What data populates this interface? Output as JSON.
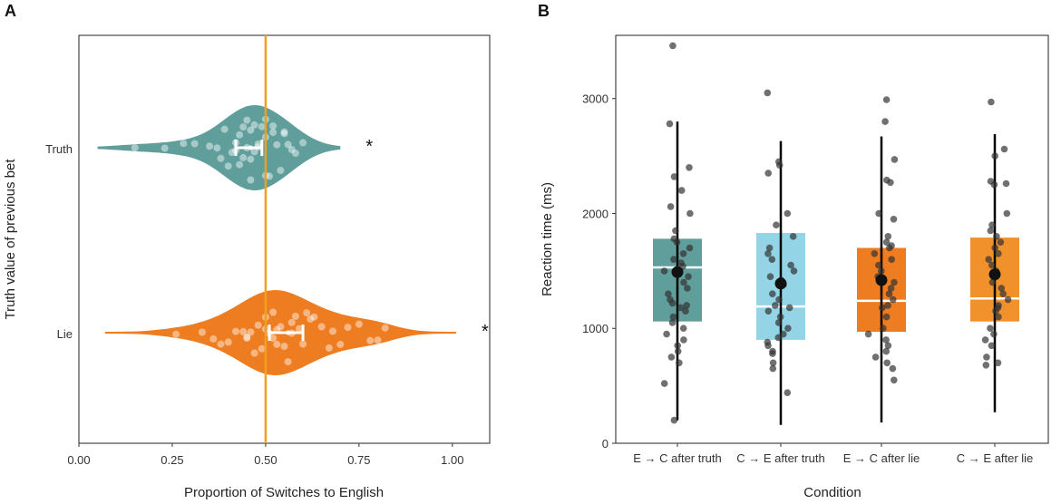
{
  "chart_data": [
    {
      "panel": "A",
      "type": "violin",
      "xlabel": "Proportion of Switches to English",
      "ylabel": "Truth value of previous bet",
      "xlim": [
        0,
        1.1
      ],
      "xticks": [
        "0.00",
        "0.25",
        "0.50",
        "0.75",
        "1.00"
      ],
      "xtick_values": [
        0,
        0.25,
        0.5,
        0.75,
        1.0
      ],
      "reference_line": 0.5,
      "reference_color": "#f0a020",
      "groups": [
        {
          "name": "Truth",
          "color": "#5f9e9b",
          "range": [
            0.05,
            0.7
          ],
          "mean": 0.46,
          "ci": [
            0.42,
            0.49
          ],
          "significance": "*",
          "points": [
            0.15,
            0.23,
            0.28,
            0.31,
            0.35,
            0.37,
            0.39,
            0.4,
            0.41,
            0.42,
            0.43,
            0.43,
            0.44,
            0.45,
            0.45,
            0.46,
            0.46,
            0.47,
            0.47,
            0.48,
            0.49,
            0.5,
            0.5,
            0.51,
            0.52,
            0.53,
            0.54,
            0.55,
            0.56,
            0.57,
            0.58,
            0.6,
            0.44,
            0.46,
            0.48,
            0.52,
            0.42,
            0.5,
            0.55,
            0.38
          ]
        },
        {
          "name": "Lie",
          "color": "#ee7d22",
          "range": [
            0.07,
            1.01
          ],
          "mean": 0.56,
          "ci": [
            0.51,
            0.6
          ],
          "significance": "*",
          "points": [
            0.26,
            0.33,
            0.36,
            0.38,
            0.4,
            0.42,
            0.44,
            0.45,
            0.46,
            0.47,
            0.48,
            0.5,
            0.5,
            0.51,
            0.52,
            0.53,
            0.54,
            0.55,
            0.56,
            0.57,
            0.58,
            0.6,
            0.62,
            0.63,
            0.65,
            0.67,
            0.7,
            0.72,
            0.75,
            0.78,
            0.8,
            0.82,
            0.45,
            0.49,
            0.53,
            0.57,
            0.61,
            0.68,
            0.52,
            0.59
          ]
        }
      ]
    },
    {
      "panel": "B",
      "type": "box",
      "xlabel": "Condition",
      "ylabel": "Reaction time (ms)",
      "ylim": [
        0,
        3550
      ],
      "yticks": [
        "0",
        "1000",
        "2000",
        "3000"
      ],
      "ytick_values": [
        0,
        1000,
        2000,
        3000
      ],
      "categories": [
        {
          "label": "E → C after truth",
          "color": "#5f9e9b",
          "q1": 1060,
          "median": 1530,
          "q3": 1780,
          "mean": 1490,
          "whisker_low": 200,
          "whisker_high": 2800,
          "points": [
            3460,
            2780,
            2400,
            2320,
            2200,
            2060,
            2000,
            1850,
            1780,
            1750,
            1700,
            1650,
            1600,
            1570,
            1540,
            1500,
            1450,
            1400,
            1350,
            1300,
            1250,
            1220,
            1200,
            1180,
            1150,
            1100,
            1050,
            1000,
            950,
            900,
            850,
            800,
            750,
            700,
            520,
            200
          ]
        },
        {
          "label": "C → E after truth",
          "color": "#93d4e6",
          "q1": 900,
          "median": 1190,
          "q3": 1830,
          "mean": 1390,
          "whisker_low": 160,
          "whisker_high": 2630,
          "points": [
            3050,
            2450,
            2420,
            2350,
            2000,
            1900,
            1800,
            1700,
            1650,
            1600,
            1550,
            1500,
            1450,
            1420,
            1380,
            1300,
            1250,
            1200,
            1180,
            1150,
            1100,
            1050,
            1000,
            950,
            920,
            880,
            850,
            800,
            780,
            700,
            650,
            440
          ]
        },
        {
          "label": "E → C after lie",
          "color": "#ee7d22",
          "q1": 970,
          "median": 1240,
          "q3": 1700,
          "mean": 1420,
          "whisker_low": 180,
          "whisker_high": 2670,
          "points": [
            2990,
            2800,
            2470,
            2290,
            2270,
            2000,
            1950,
            1800,
            1750,
            1720,
            1700,
            1650,
            1600,
            1550,
            1500,
            1450,
            1400,
            1350,
            1300,
            1250,
            1200,
            1180,
            1100,
            1000,
            950,
            900,
            850,
            800,
            750,
            700,
            650,
            550
          ]
        },
        {
          "label": "C → E after lie",
          "color": "#f0912c",
          "q1": 1060,
          "median": 1260,
          "q3": 1790,
          "mean": 1470,
          "whisker_low": 270,
          "whisker_high": 2690,
          "points": [
            2970,
            2560,
            2500,
            2280,
            2260,
            2250,
            2000,
            1900,
            1850,
            1800,
            1750,
            1700,
            1650,
            1600,
            1550,
            1500,
            1450,
            1400,
            1350,
            1300,
            1250,
            1200,
            1180,
            1150,
            1100,
            1000,
            950,
            900,
            850,
            750,
            700,
            680
          ]
        }
      ]
    }
  ]
}
